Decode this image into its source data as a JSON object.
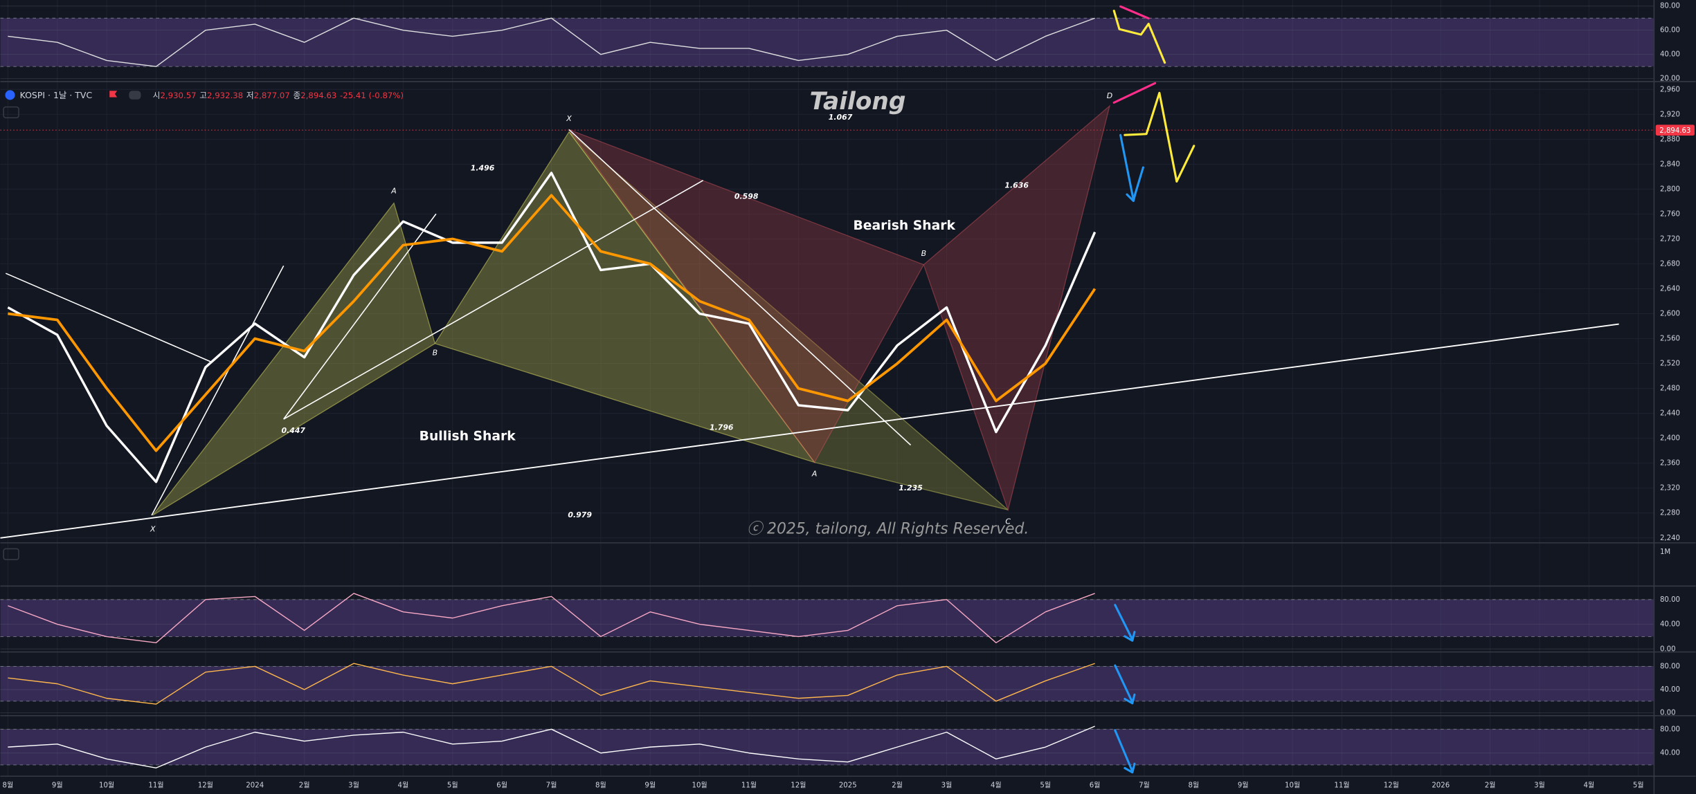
{
  "header": {
    "symbol": "KOSPI · 1날 · TVC",
    "open_label": "시",
    "open": "2,930.57",
    "high_label": "고",
    "high": "2,932.38",
    "low_label": "저",
    "low": "2,877.07",
    "close_label": "종",
    "close": "2,894.63",
    "change": "-25.41 (-0.87%)",
    "scale_label": "1M"
  },
  "chart_data": [
    {
      "type": "line",
      "title": "Tailong",
      "categories": [
        "8월",
        "9월",
        "10월",
        "11월",
        "12월",
        "2024",
        "2월",
        "3월",
        "4월",
        "5월",
        "6월",
        "7월",
        "8월",
        "9월",
        "10월",
        "11월",
        "12월",
        "2025",
        "2월",
        "3월",
        "4월",
        "5월",
        "6월",
        "7월",
        "8월",
        "9월",
        "10월",
        "11월",
        "12월",
        "2026",
        "2월",
        "3월",
        "4월",
        "5월"
      ],
      "series": [
        {
          "color": "#ffffff",
          "values": [
            2610,
            2566,
            2420,
            2330,
            2514,
            2584,
            2530,
            2662,
            2748,
            2714,
            2714,
            2826,
            2670,
            2680,
            2600,
            2584,
            2453,
            2445,
            2549,
            2610,
            2410,
            2549,
            2731,
            null,
            null,
            null,
            null,
            null,
            null,
            null,
            null,
            null,
            null,
            null
          ]
        },
        {
          "color": "#ff9800",
          "values": [
            2600,
            2590,
            2480,
            2380,
            2470,
            2560,
            2540,
            2620,
            2710,
            2720,
            2700,
            2790,
            2700,
            2680,
            2620,
            2590,
            2480,
            2460,
            2520,
            2590,
            2460,
            2520,
            2640,
            null,
            null,
            null,
            null,
            null,
            null,
            null,
            null,
            null,
            null,
            null
          ]
        }
      ],
      "ylim": [
        2233,
        2970
      ],
      "yticks": [
        {
          "value": 2240,
          "label": "2,240"
        },
        {
          "value": 2280,
          "label": "2,280"
        },
        {
          "value": 2320,
          "label": "2,320"
        },
        {
          "value": 2360,
          "label": "2,360"
        },
        {
          "value": 2400,
          "label": "2,400"
        },
        {
          "value": 2440,
          "label": "2,440"
        },
        {
          "value": 2480,
          "label": "2,480"
        },
        {
          "value": 2520,
          "label": "2,520"
        },
        {
          "value": 2560,
          "label": "2,560"
        },
        {
          "value": 2600,
          "label": "2,600"
        },
        {
          "value": 2640,
          "label": "2,640"
        },
        {
          "value": 2680,
          "label": "2,680"
        },
        {
          "value": 2720,
          "label": "2,720"
        },
        {
          "value": 2760,
          "label": "2,760"
        },
        {
          "value": 2800,
          "label": "2,800"
        },
        {
          "value": 2840,
          "label": "2,840"
        },
        {
          "value": 2880,
          "label": "2,880"
        },
        {
          "value": 2920,
          "label": "2,920"
        },
        {
          "value": 2960,
          "label": "2,960"
        }
      ],
      "grid": true,
      "last_price": 2894.63,
      "last_price_label": "2,894.63",
      "pattern_names": [
        "Bullish Shark",
        "Bearish Shark"
      ],
      "ratios": [
        1.067,
        1.496,
        0.598,
        1.636,
        0.447,
        1.796,
        1.235,
        0.979
      ],
      "point_labels": [
        "X",
        "A",
        "B",
        "X",
        "B",
        "A",
        "C",
        "D"
      ],
      "watermark": "ⓒ 2025, tailong, All Rights Reserved."
    },
    {
      "type": "line",
      "series": [
        {
          "color": "#e0e0e0",
          "values": [
            55,
            50,
            35,
            30,
            60,
            65,
            50,
            70,
            60,
            55,
            60,
            70,
            40,
            50,
            45,
            45,
            35,
            40,
            55,
            60,
            35,
            55,
            70
          ]
        }
      ],
      "ylim": [
        18,
        85
      ],
      "band": [
        30,
        70
      ],
      "yticks": [
        {
          "value": 80,
          "label": "80.00"
        },
        {
          "value": 60,
          "label": "60.00"
        },
        {
          "value": 40,
          "label": "40.00"
        },
        {
          "value": 20,
          "label": "20.00"
        }
      ]
    },
    {
      "type": "line",
      "series": [
        {
          "color": "#f7a8c4",
          "values": [
            70,
            40,
            20,
            10,
            80,
            85,
            30,
            90,
            60,
            50,
            70,
            85,
            20,
            60,
            40,
            30,
            20,
            30,
            70,
            80,
            10,
            60,
            90
          ]
        }
      ],
      "ylim": [
        -4,
        101
      ],
      "band": [
        20,
        80
      ],
      "yticks": [
        {
          "value": 80,
          "label": "80.00"
        },
        {
          "value": 40,
          "label": "40.00"
        },
        {
          "value": 0,
          "label": "0.00"
        }
      ]
    },
    {
      "type": "line",
      "series": [
        {
          "color": "#ffb74d",
          "values": [
            60,
            50,
            25,
            15,
            70,
            80,
            40,
            85,
            65,
            50,
            65,
            80,
            30,
            55,
            45,
            35,
            25,
            30,
            65,
            80,
            20,
            55,
            85
          ]
        }
      ],
      "ylim": [
        -4,
        102
      ],
      "band": [
        20,
        80
      ],
      "yticks": [
        {
          "value": 80,
          "label": "80.00"
        },
        {
          "value": 40,
          "label": "40.00"
        },
        {
          "value": 0,
          "label": "0.00"
        }
      ]
    },
    {
      "type": "line",
      "series": [
        {
          "color": "#ffffff",
          "values": [
            50,
            55,
            30,
            15,
            50,
            75,
            60,
            70,
            75,
            55,
            60,
            80,
            40,
            50,
            55,
            40,
            30,
            25,
            50,
            75,
            30,
            50,
            85
          ]
        }
      ],
      "ylim": [
        2,
        100
      ],
      "band": [
        20,
        80
      ],
      "yticks": [
        {
          "value": 80,
          "label": "80.00"
        },
        {
          "value": 40,
          "label": "40.00"
        }
      ]
    }
  ]
}
